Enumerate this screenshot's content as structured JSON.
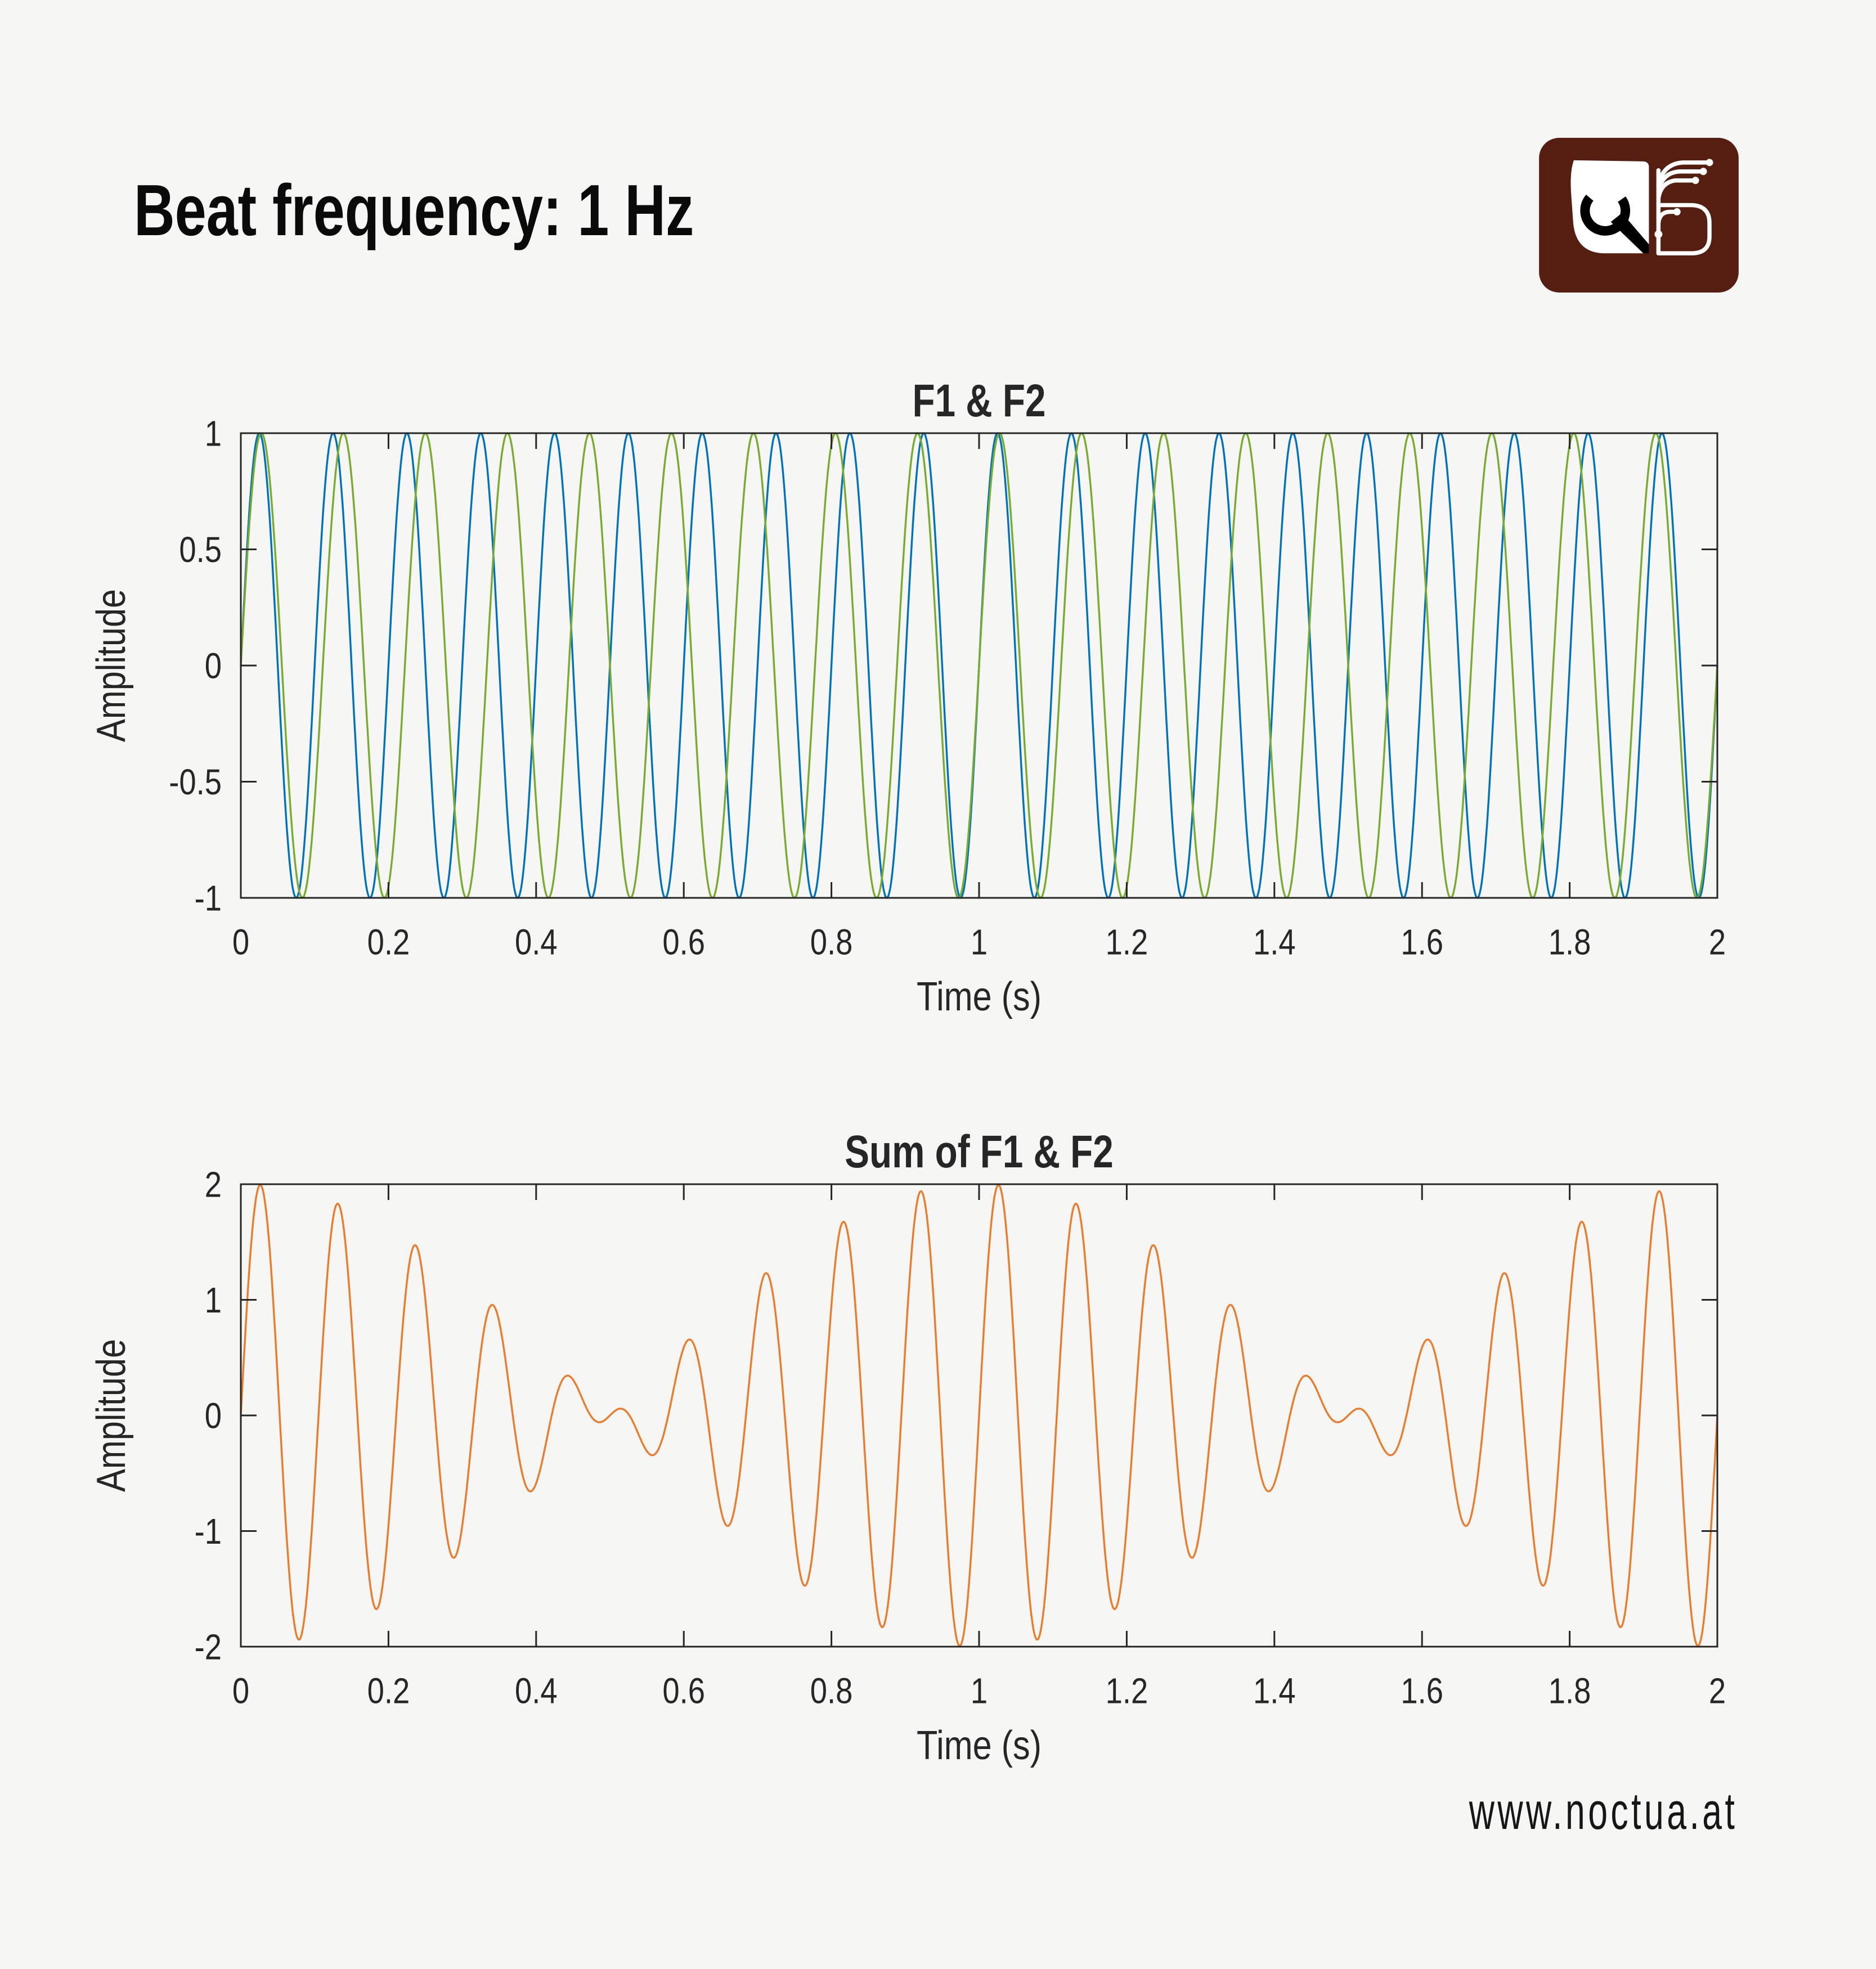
{
  "page": {
    "title": "Beat frequency: 1 Hz",
    "footer": "www.noctua.at",
    "background_color": "#F6F6F4",
    "logo": {
      "name": "noctua-owl-fan-logo",
      "bg_color": "#561D11",
      "fg_color": "#FFFFFF",
      "eye_color": "#000000"
    }
  },
  "beat_frequency_hz": 1,
  "chart_style": {
    "axes_color": "#262626",
    "text_color": "#262626",
    "plot_background": "#F6F6F4",
    "grid": false,
    "tick_direction": "in",
    "box": true
  },
  "chart_data": [
    {
      "type": "line",
      "title": "F1 & F2",
      "xlabel": "Time (s)",
      "ylabel": "Amplitude",
      "xlim": [
        0,
        2
      ],
      "ylim": [
        -1,
        1
      ],
      "xtick_values": [
        0,
        0.2,
        0.4,
        0.6,
        0.8,
        1,
        1.2,
        1.4,
        1.6,
        1.8,
        2
      ],
      "xtick_labels": [
        "0",
        "0.2",
        "0.4",
        "0.6",
        "0.8",
        "1",
        "1.2",
        "1.4",
        "1.6",
        "1.8",
        "2"
      ],
      "ytick_values": [
        -1,
        -0.5,
        0,
        0.5,
        1
      ],
      "ytick_labels": [
        "-1",
        "-0.5",
        "0",
        "0.5",
        "1"
      ],
      "legend": null,
      "series": [
        {
          "name": "F1",
          "waveform": "sine",
          "frequency_hz": 10,
          "amplitude": 1,
          "phase_rad": 0,
          "color": "#0072BD"
        },
        {
          "name": "F2",
          "waveform": "sine",
          "frequency_hz": 9,
          "amplitude": 1,
          "phase_rad": 0,
          "color": "#77AC30"
        }
      ]
    },
    {
      "type": "line",
      "title": "Sum of F1 & F2",
      "xlabel": "Time (s)",
      "ylabel": "Amplitude",
      "xlim": [
        0,
        2
      ],
      "ylim": [
        -2,
        2
      ],
      "xtick_values": [
        0,
        0.2,
        0.4,
        0.6,
        0.8,
        1,
        1.2,
        1.4,
        1.6,
        1.8,
        2
      ],
      "xtick_labels": [
        "0",
        "0.2",
        "0.4",
        "0.6",
        "0.8",
        "1",
        "1.2",
        "1.4",
        "1.6",
        "1.8",
        "2"
      ],
      "ytick_values": [
        -2,
        -1,
        0,
        1,
        2
      ],
      "ytick_labels": [
        "-2",
        "-1",
        "0",
        "1",
        "2"
      ],
      "legend": null,
      "series": [
        {
          "name": "F1 + F2",
          "waveform": "sine_sum",
          "components_hz": [
            10,
            9
          ],
          "amplitude_each": 1,
          "phase_rad": 0,
          "color": "#E87D2E"
        }
      ]
    }
  ]
}
